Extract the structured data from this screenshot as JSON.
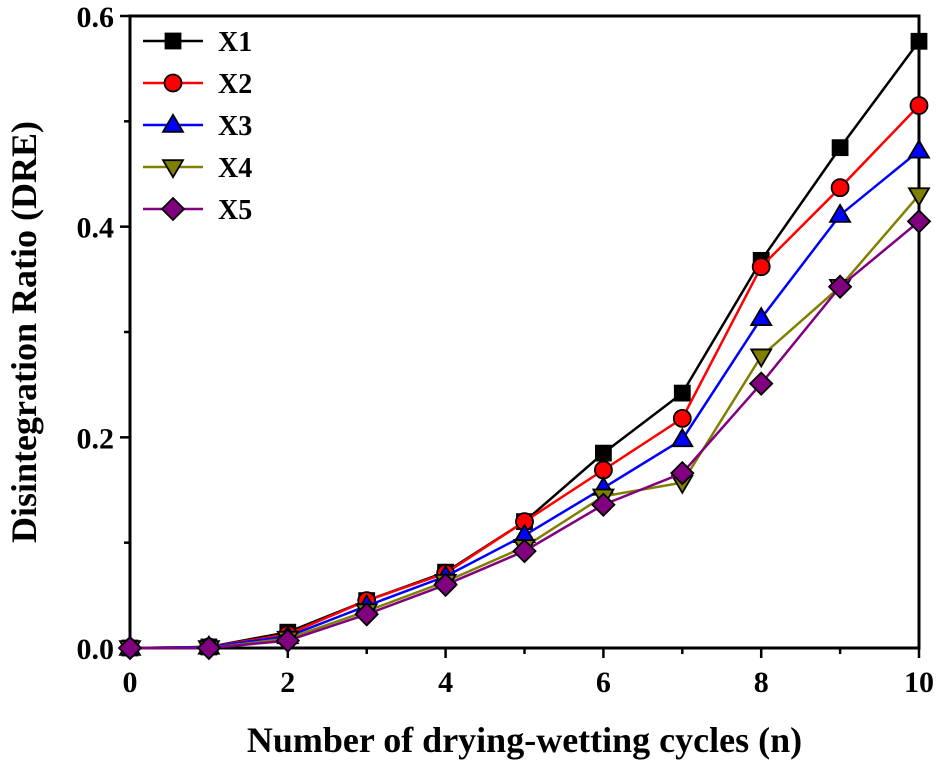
{
  "chart_data": {
    "type": "line",
    "title": "",
    "xlabel": "Number of drying-wetting cycles (n)",
    "ylabel": "Disintegration Ratio  (DRE)",
    "xlim": [
      0,
      10
    ],
    "ylim": [
      0,
      0.6
    ],
    "x_ticks": [
      0,
      2,
      4,
      6,
      8,
      10
    ],
    "x_tick_labels": [
      "0",
      "2",
      "4",
      "6",
      "8",
      "10"
    ],
    "y_ticks": [
      0.0,
      0.2,
      0.4,
      0.6
    ],
    "y_tick_labels": [
      "0.0",
      "0.2",
      "0.4",
      "0.6"
    ],
    "grid": false,
    "legend_position": "top-left",
    "x": [
      0,
      1,
      2,
      3,
      4,
      5,
      6,
      7,
      8,
      9,
      10
    ],
    "series": [
      {
        "name": "X1",
        "color": "#000000",
        "marker": "square",
        "values": [
          0,
          0.001,
          0.015,
          0.045,
          0.072,
          0.12,
          0.185,
          0.242,
          0.368,
          0.475,
          0.576
        ]
      },
      {
        "name": "X2",
        "color": "#ff0000",
        "marker": "circle",
        "values": [
          0,
          0.001,
          0.013,
          0.045,
          0.071,
          0.12,
          0.169,
          0.218,
          0.362,
          0.437,
          0.515
        ]
      },
      {
        "name": "X3",
        "color": "#0000ff",
        "marker": "triangle-up",
        "values": [
          0,
          0.001,
          0.011,
          0.04,
          0.068,
          0.107,
          0.152,
          0.198,
          0.313,
          0.411,
          0.472
        ]
      },
      {
        "name": "X4",
        "color": "#808000",
        "marker": "triangle-down",
        "values": [
          0,
          0.0,
          0.009,
          0.035,
          0.063,
          0.096,
          0.144,
          0.157,
          0.277,
          0.343,
          0.43
        ]
      },
      {
        "name": "X5",
        "color": "#800080",
        "marker": "diamond",
        "values": [
          0,
          0.0,
          0.007,
          0.032,
          0.06,
          0.092,
          0.136,
          0.166,
          0.251,
          0.343,
          0.405
        ]
      }
    ]
  }
}
